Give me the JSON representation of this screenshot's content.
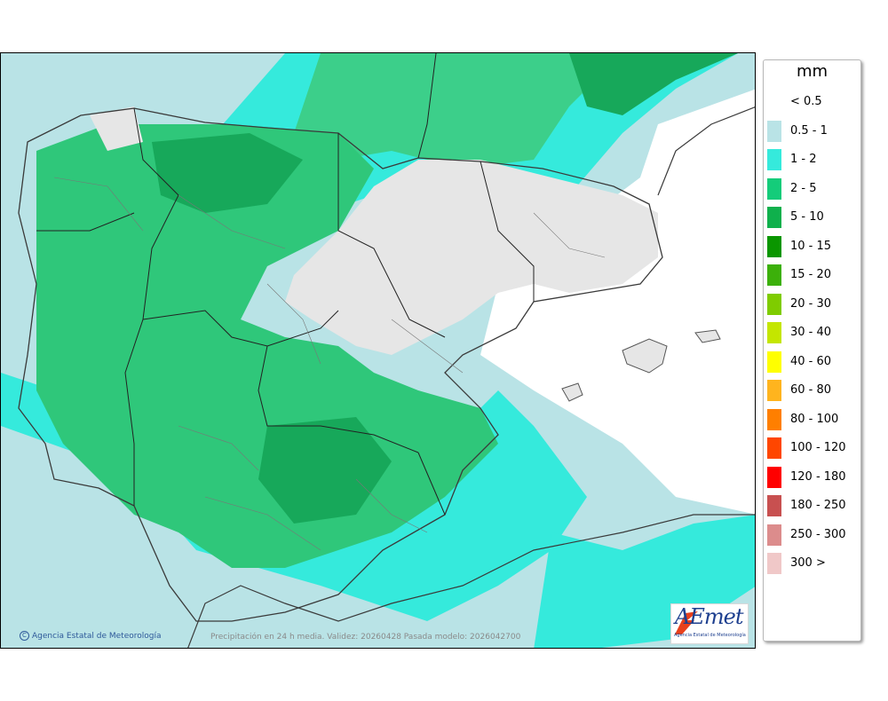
{
  "legend": {
    "unit": "mm",
    "items": [
      {
        "label": "< 0.5",
        "color": "#ffffff"
      },
      {
        "label": "0.5 - 1",
        "color": "#b9e3e6"
      },
      {
        "label": "1 - 2",
        "color": "#35eadc"
      },
      {
        "label": "2 - 5",
        "color": "#14cc7a"
      },
      {
        "label": "5 - 10",
        "color": "#0fb04c"
      },
      {
        "label": "10 - 15",
        "color": "#0a9600"
      },
      {
        "label": "15 - 20",
        "color": "#3cb00a"
      },
      {
        "label": "20 - 30",
        "color": "#7fcc00"
      },
      {
        "label": "30 - 40",
        "color": "#c4e600"
      },
      {
        "label": "40 - 60",
        "color": "#ffff00"
      },
      {
        "label": "60 - 80",
        "color": "#ffb41e"
      },
      {
        "label": "80 - 100",
        "color": "#ff7f00"
      },
      {
        "label": "100 - 120",
        "color": "#ff4600"
      },
      {
        "label": "120 - 180",
        "color": "#ff0000"
      },
      {
        "label": "180 - 250",
        "color": "#c85050"
      },
      {
        "label": "250 - 300",
        "color": "#dc8c8c"
      },
      {
        "label": "300 >",
        "color": "#f0c8c8"
      }
    ]
  },
  "credit": "Agencia Estatal de Meteorología",
  "caption": "Precipitación en 24 h media. Validez: 20260428 Pasada modelo: 2026042700",
  "logo": {
    "word": "AEmet",
    "subtitle": "Agencia Estatal de Meteorología"
  }
}
